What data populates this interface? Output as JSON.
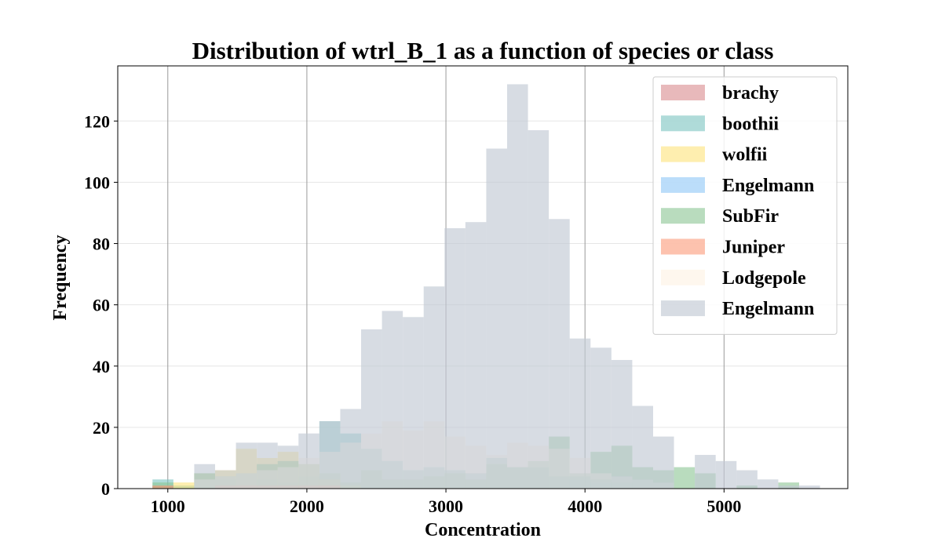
{
  "chart_data": {
    "type": "histogram",
    "title": "Distribution of wtrl_B_1 as a function of species or class",
    "xlabel": "Concentration",
    "ylabel": "Frequency",
    "xlim": [
      640,
      5890
    ],
    "ylim": [
      0,
      138
    ],
    "xticks": [
      1000,
      2000,
      3000,
      4000,
      5000
    ],
    "yticks": [
      0,
      20,
      40,
      60,
      80,
      100,
      120
    ],
    "grid": {
      "x": true,
      "y": true
    },
    "legend_position": "top-right",
    "bin_edges": [
      890,
      1040,
      1190,
      1340,
      1490,
      1640,
      1790,
      1940,
      2090,
      2240,
      2390,
      2540,
      2690,
      2840,
      2990,
      3140,
      3290,
      3440,
      3590,
      3740,
      3890,
      4040,
      4190,
      4340,
      4490,
      4640,
      4790,
      4940,
      5090,
      5240,
      5390,
      5540,
      5690
    ],
    "series": [
      {
        "name": "brachy",
        "color": "#d98a8d",
        "opacity": 0.6,
        "values": [
          1,
          0,
          0,
          1,
          1,
          1,
          1,
          1,
          1,
          0,
          0,
          0,
          0,
          0,
          0,
          0,
          0,
          0,
          0,
          0,
          0,
          0,
          0,
          0,
          0,
          0,
          0,
          0,
          0,
          0,
          0,
          0
        ]
      },
      {
        "name": "boothii",
        "color": "#7ac3c0",
        "opacity": 0.6,
        "values": [
          3,
          1,
          5,
          3,
          1,
          3,
          2,
          4,
          22,
          18,
          13,
          9,
          6,
          7,
          6,
          5,
          10,
          7,
          7,
          4,
          4,
          3,
          2,
          3,
          2,
          0,
          0,
          0,
          0,
          0,
          0,
          0
        ]
      },
      {
        "name": "wolfii",
        "color": "#fde27a",
        "opacity": 0.6,
        "values": [
          0,
          2,
          5,
          6,
          13,
          10,
          12,
          8,
          3,
          1,
          0,
          0,
          0,
          0,
          0,
          0,
          0,
          0,
          0,
          0,
          0,
          0,
          0,
          0,
          0,
          0,
          0,
          0,
          0,
          0,
          0,
          0
        ]
      },
      {
        "name": "Engelmann",
        "color": "#8ec6f6",
        "opacity": 0.6,
        "values": [
          0,
          0,
          0,
          0,
          0,
          0,
          0,
          0,
          0,
          0,
          0,
          0,
          0,
          0,
          0,
          0,
          0,
          0,
          0,
          0,
          3,
          2,
          4,
          3,
          2,
          0,
          0,
          0,
          0,
          0,
          0,
          0
        ]
      },
      {
        "name": "SubFir",
        "color": "#8bc592",
        "opacity": 0.6,
        "values": [
          2,
          0,
          5,
          4,
          5,
          8,
          9,
          8,
          5,
          2,
          6,
          3,
          3,
          4,
          5,
          3,
          8,
          7,
          9,
          17,
          5,
          12,
          14,
          7,
          6,
          7,
          5,
          0,
          1,
          0,
          2,
          0
        ]
      },
      {
        "name": "Juniper",
        "color": "#fb9a78",
        "opacity": 0.6,
        "values": [
          1,
          0,
          0,
          1,
          1,
          1,
          1,
          1,
          1,
          0,
          0,
          0,
          0,
          0,
          0,
          0,
          0,
          0,
          0,
          0,
          0,
          0,
          0,
          0,
          0,
          0,
          0,
          0,
          0,
          0,
          0,
          0
        ]
      },
      {
        "name": "Lodgepole",
        "color": "#fef2e3",
        "opacity": 0.6,
        "values": [
          0,
          0,
          3,
          4,
          5,
          6,
          7,
          10,
          12,
          15,
          18,
          22,
          19,
          22,
          17,
          14,
          11,
          15,
          14,
          13,
          10,
          5,
          4,
          3,
          2,
          0,
          0,
          0,
          0,
          0,
          0,
          0
        ]
      },
      {
        "name": "Engelmann",
        "color": "#c2c9d4",
        "opacity": 0.65,
        "values": [
          0,
          0,
          8,
          6,
          15,
          15,
          14,
          18,
          22,
          26,
          52,
          58,
          56,
          66,
          85,
          87,
          111,
          132,
          117,
          88,
          49,
          46,
          42,
          27,
          17,
          0,
          11,
          9,
          6,
          3,
          1,
          1
        ]
      }
    ]
  }
}
